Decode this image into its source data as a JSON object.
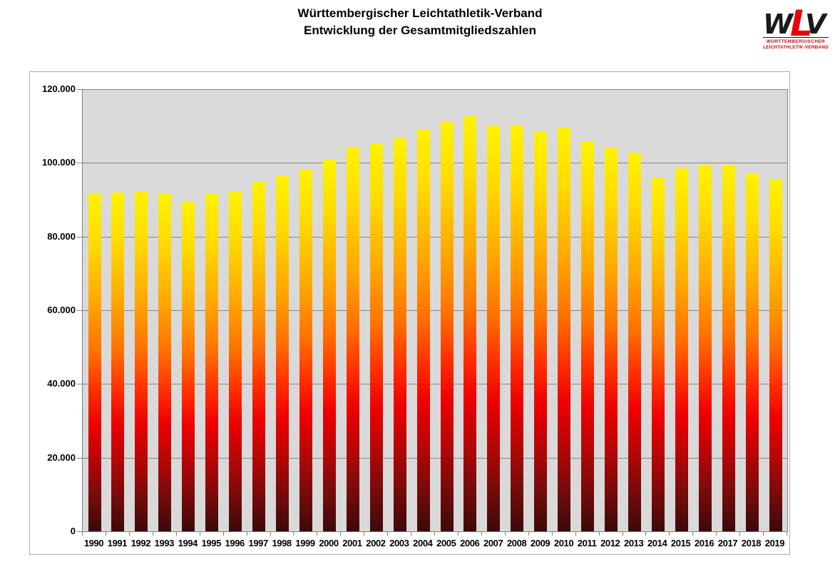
{
  "title": {
    "line1": "Württembergischer Leichtathletik-Verband",
    "line2": "Entwicklung der Gesamtmitgliedszahlen"
  },
  "logo": {
    "letters": {
      "w": "W",
      "l": "L",
      "v": "V"
    },
    "line1": "WÜRTTEMBERGISCHER",
    "line2": "LEICHTATHLETIK-VERBAND"
  },
  "chart_data": {
    "type": "bar",
    "title": "Württembergischer Leichtathletik-Verband – Entwicklung der Gesamtmitgliedszahlen",
    "categories": [
      "1990",
      "1991",
      "1992",
      "1993",
      "1994",
      "1995",
      "1996",
      "1997",
      "1998",
      "1999",
      "2000",
      "2001",
      "2002",
      "2003",
      "2004",
      "2005",
      "2006",
      "2007",
      "2008",
      "2009",
      "2010",
      "2011",
      "2012",
      "2013",
      "2014",
      "2015",
      "2016",
      "2017",
      "2018",
      "2019"
    ],
    "values": [
      91600,
      92000,
      92400,
      91700,
      89400,
      91600,
      92300,
      94900,
      96300,
      98400,
      100800,
      104400,
      105100,
      106900,
      109200,
      111300,
      112600,
      110200,
      110400,
      108400,
      109600,
      105800,
      104200,
      102700,
      96000,
      98600,
      99500,
      99500,
      97100,
      95500
    ],
    "xlabel": "",
    "ylabel": "",
    "ylim": [
      0,
      120000
    ],
    "y_tick_step": 20000,
    "y_tick_labels": [
      "120.000",
      "100.000",
      "80.000",
      "60.000",
      "40.000",
      "20.000",
      "0"
    ],
    "grid": true,
    "legend": false
  },
  "colors": {
    "plot_bg": "#D9D9D9",
    "gridline": "#878787",
    "axis": "#808080",
    "frame_border": "#ABABAB",
    "bar_gradient": [
      "#FFF200 0%",
      "#FFDC00 14%",
      "#FFA800 32%",
      "#FF7000 47%",
      "#FF3000 58%",
      "#EE0000 68%",
      "#B00707 80%",
      "#6E0B0B 91%",
      "#3C0909 100%"
    ],
    "logo_red": "#E8000D",
    "logo_black": "#1A1A1A"
  }
}
